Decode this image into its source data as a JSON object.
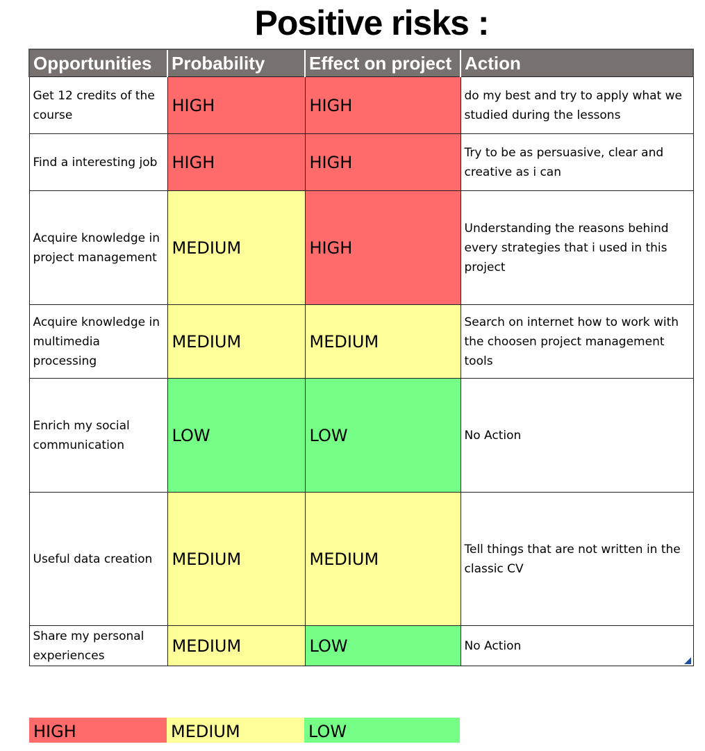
{
  "title": "Positive risks :",
  "table": {
    "headers": [
      "Opportunities",
      "Probability",
      "Effect on project",
      "Action"
    ],
    "rows": [
      {
        "opportunity": "Get 12 credits of the course",
        "probability": "HIGH",
        "effect": "HIGH",
        "action": "do my best and try to apply what we studied during the lessons"
      },
      {
        "opportunity": "Find a interesting job",
        "probability": "HIGH",
        "effect": "HIGH",
        "action": "Try to be as persuasive, clear and creative as i can"
      },
      {
        "opportunity": "Acquire knowledge in project management",
        "probability": "MEDIUM",
        "effect": "HIGH",
        "action": "Understanding the reasons behind every strategies that i used in this project"
      },
      {
        "opportunity": "Acquire knowledge in multimedia processing",
        "probability": "MEDIUM",
        "effect": "MEDIUM",
        "action": "Search on internet how to work with the choosen project management tools"
      },
      {
        "opportunity": "Enrich my social communication",
        "probability": "LOW",
        "effect": "LOW",
        "action": "No Action"
      },
      {
        "opportunity": "Useful data creation",
        "probability": "MEDIUM",
        "effect": "MEDIUM",
        "action": "Tell things that are not written in the classic CV"
      },
      {
        "opportunity": "Share my personal experiences",
        "probability": "MEDIUM",
        "effect": "LOW",
        "action": "No Action"
      }
    ]
  },
  "legend": [
    "HIGH",
    "MEDIUM",
    "LOW"
  ],
  "colors": {
    "HIGH": "#ff6b6b",
    "MEDIUM": "#ffff99",
    "LOW": "#75ff86",
    "header": "#777170"
  }
}
